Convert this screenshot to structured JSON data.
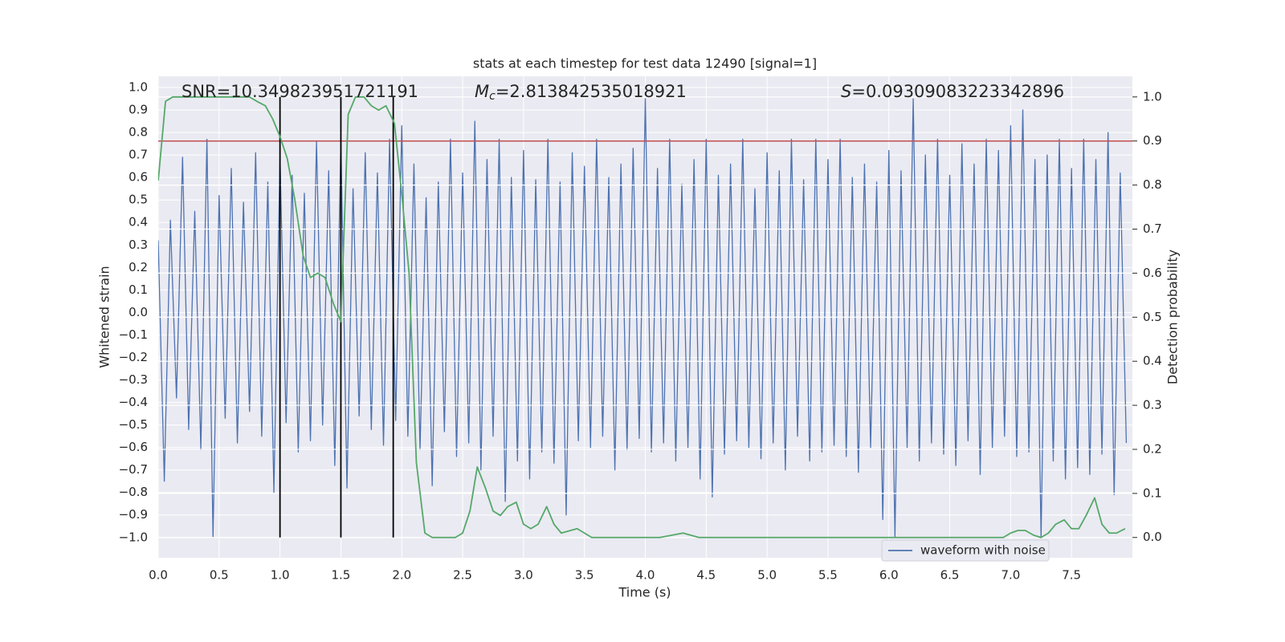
{
  "chart_data": {
    "type": "line",
    "title": "stats at each timestep for test data 12490 [signal=1]",
    "xlabel": "Time (s)",
    "ylabel": "Whitened strain",
    "y2label": "Detection probability",
    "annotations": [
      {
        "text": "SNR=10.349823951721191"
      },
      {
        "symbol": "M",
        "subscript": "c",
        "text": "=2.813842535018921"
      },
      {
        "symbol": "S",
        "text": "=0.09309083223342896"
      }
    ],
    "xlim": [
      0,
      8
    ],
    "ylim": [
      -1.09,
      1.05
    ],
    "y2lim": [
      -0.046,
      1.047
    ],
    "xticks": [
      {
        "value": 0,
        "label": "0.0"
      },
      0.5,
      {
        "value": 1,
        "label": "1.0"
      },
      1.5,
      {
        "value": 2,
        "label": "2.0"
      },
      2.5,
      {
        "value": 3,
        "label": "3.0"
      },
      3.5,
      {
        "value": 4,
        "label": "4.0"
      },
      4.5,
      {
        "value": 5,
        "label": "5.0"
      },
      5.5,
      {
        "value": 6,
        "label": "6.0"
      },
      6.5,
      {
        "value": 7,
        "label": "7.0"
      },
      7.5
    ],
    "yticks": [
      {
        "value": -1,
        "label": "−1.0"
      },
      {
        "value": -0.9,
        "label": "−0.9"
      },
      {
        "value": -0.8,
        "label": "−0.8"
      },
      {
        "value": -0.7,
        "label": "−0.7"
      },
      {
        "value": -0.6,
        "label": "−0.6"
      },
      {
        "value": -0.5,
        "label": "−0.5"
      },
      {
        "value": -0.4,
        "label": "−0.4"
      },
      {
        "value": -0.3,
        "label": "−0.3"
      },
      {
        "value": -0.2,
        "label": "−0.2"
      },
      {
        "value": -0.1,
        "label": "−0.1"
      },
      {
        "value": 0,
        "label": "0.0"
      },
      0.1,
      0.2,
      0.3,
      0.4,
      0.5,
      0.6,
      0.7,
      0.8,
      0.9,
      {
        "value": 1,
        "label": "1.0"
      }
    ],
    "y2ticks": [
      {
        "value": 0,
        "label": "0.0"
      },
      0.1,
      0.2,
      0.3,
      0.4,
      0.5,
      0.6,
      0.7,
      0.8,
      0.9,
      {
        "value": 1,
        "label": "1.0"
      }
    ],
    "grid": true,
    "legend": "lower right",
    "series": [
      {
        "name": "waveform with noise",
        "color": "#4c72b0",
        "x": [
          0,
          0.05,
          0.1,
          0.15,
          0.2,
          0.25,
          0.3,
          0.35,
          0.4,
          0.45,
          0.5,
          0.55,
          0.6,
          0.65,
          0.7,
          0.75,
          0.8,
          0.85,
          0.9,
          0.95,
          1,
          1.05,
          1.1,
          1.15,
          1.2,
          1.25,
          1.3,
          1.35,
          1.4,
          1.45,
          1.5,
          1.55,
          1.6,
          1.65,
          1.7,
          1.75,
          1.8,
          1.85,
          1.9,
          1.95,
          2,
          2.05,
          2.1,
          2.15,
          2.2,
          2.25,
          2.3,
          2.35,
          2.4,
          2.45,
          2.5,
          2.55,
          2.6,
          2.65,
          2.7,
          2.75,
          2.8,
          2.85,
          2.9,
          2.95,
          3,
          3.05,
          3.1,
          3.15,
          3.2,
          3.25,
          3.3,
          3.35,
          3.4,
          3.45,
          3.5,
          3.55,
          3.6,
          3.65,
          3.7,
          3.75,
          3.8,
          3.85,
          3.9,
          3.95,
          4,
          4.05,
          4.1,
          4.15,
          4.2,
          4.25,
          4.3,
          4.35,
          4.4,
          4.45,
          4.5,
          4.55,
          4.6,
          4.65,
          4.7,
          4.75,
          4.8,
          4.85,
          4.9,
          4.95,
          5,
          5.05,
          5.1,
          5.15,
          5.2,
          5.25,
          5.3,
          5.35,
          5.4,
          5.45,
          5.5,
          5.55,
          5.6,
          5.65,
          5.7,
          5.75,
          5.8,
          5.85,
          5.9,
          5.95,
          6,
          6.05,
          6.1,
          6.15,
          6.2,
          6.25,
          6.3,
          6.35,
          6.4,
          6.45,
          6.5,
          6.55,
          6.6,
          6.65,
          6.7,
          6.75,
          6.8,
          6.85,
          6.9,
          6.95,
          7,
          7.05,
          7.1,
          7.15,
          7.2,
          7.25,
          7.3,
          7.35,
          7.4,
          7.45,
          7.5,
          7.55,
          7.6,
          7.65,
          7.7,
          7.75,
          7.8,
          7.85,
          7.9,
          7.95
        ],
        "values": [
          0.32,
          -0.75,
          0.41,
          -0.38,
          0.69,
          -0.52,
          0.45,
          -0.61,
          0.77,
          -1.0,
          0.52,
          -0.47,
          0.64,
          -0.58,
          0.49,
          -0.44,
          0.71,
          -0.55,
          0.58,
          -0.8,
          0.69,
          -0.49,
          0.61,
          -0.62,
          0.53,
          -0.57,
          0.76,
          -0.5,
          0.63,
          -0.68,
          0.77,
          -0.78,
          0.55,
          -0.46,
          0.71,
          -0.52,
          0.62,
          -0.59,
          0.77,
          -0.48,
          0.83,
          -0.55,
          0.66,
          -0.61,
          0.51,
          -0.77,
          0.58,
          -0.53,
          0.77,
          -0.64,
          0.62,
          -0.58,
          0.85,
          -0.7,
          0.68,
          -0.55,
          0.77,
          -0.84,
          0.6,
          -0.66,
          0.72,
          -0.74,
          0.59,
          -0.62,
          0.77,
          -0.67,
          0.58,
          -0.9,
          0.71,
          -0.57,
          0.65,
          -0.6,
          0.77,
          -0.55,
          0.6,
          -0.7,
          0.66,
          -0.61,
          0.73,
          -0.56,
          0.95,
          -0.62,
          0.64,
          -0.58,
          0.77,
          -0.66,
          0.57,
          -0.6,
          0.68,
          -0.74,
          0.77,
          -0.82,
          0.61,
          -0.63,
          0.66,
          -0.57,
          0.77,
          -0.6,
          0.55,
          -0.65,
          0.71,
          -0.58,
          0.63,
          -0.7,
          0.77,
          -0.55,
          0.59,
          -0.66,
          0.77,
          -0.62,
          0.68,
          -0.59,
          0.77,
          -0.64,
          0.6,
          -0.71,
          0.66,
          -0.6,
          0.58,
          -0.92,
          0.72,
          -1.0,
          0.63,
          -0.6,
          0.95,
          -0.66,
          0.7,
          -0.58,
          0.77,
          -0.63,
          0.61,
          -0.68,
          0.75,
          -0.57,
          0.66,
          -0.72,
          0.77,
          -0.6,
          0.72,
          -0.55,
          0.83,
          -0.64,
          0.9,
          -0.62,
          0.68,
          -1.0,
          0.7,
          -0.66,
          0.77,
          -0.74,
          0.64,
          -0.69,
          0.77,
          -0.72,
          0.68,
          -0.63,
          0.8,
          -0.81,
          0.62,
          -0.58
        ]
      },
      {
        "color": "#55a868",
        "axis": "y2",
        "x": [
          0,
          0.06,
          0.12,
          0.25,
          0.5,
          0.75,
          0.81,
          0.88,
          0.94,
          1.0,
          1.06,
          1.12,
          1.19,
          1.25,
          1.31,
          1.37,
          1.44,
          1.5,
          1.56,
          1.62,
          1.69,
          1.75,
          1.81,
          1.87,
          1.94,
          2.0,
          2.06,
          2.12,
          2.19,
          2.25,
          2.37,
          2.44,
          2.5,
          2.56,
          2.62,
          2.69,
          2.75,
          2.81,
          2.87,
          2.94,
          3.0,
          3.06,
          3.12,
          3.19,
          3.25,
          3.31,
          3.44,
          3.5,
          3.56,
          3.75,
          4.0,
          4.12,
          4.31,
          4.44,
          4.75,
          5.0,
          5.5,
          5.94,
          6.0,
          6.5,
          6.94,
          7.0,
          7.06,
          7.12,
          7.19,
          7.25,
          7.31,
          7.37,
          7.44,
          7.5,
          7.56,
          7.62,
          7.69,
          7.75,
          7.81,
          7.87,
          7.94
        ],
        "values": [
          0.81,
          0.99,
          1.0,
          1.0,
          1.0,
          1.0,
          0.99,
          0.98,
          0.95,
          0.91,
          0.86,
          0.77,
          0.64,
          0.59,
          0.6,
          0.59,
          0.53,
          0.49,
          0.96,
          1.0,
          1.0,
          0.98,
          0.97,
          0.98,
          0.94,
          0.78,
          0.6,
          0.17,
          0.01,
          0.0,
          0.0,
          0.0,
          0.01,
          0.06,
          0.16,
          0.11,
          0.06,
          0.05,
          0.07,
          0.08,
          0.03,
          0.02,
          0.03,
          0.07,
          0.03,
          0.01,
          0.02,
          0.01,
          0.0,
          0.0,
          0.0,
          0.0,
          0.01,
          0.0,
          0.0,
          0.0,
          0.0,
          0.0,
          0.0,
          0.0,
          0.0,
          0.01,
          0.016,
          0.016,
          0.005,
          0.0,
          0.01,
          0.03,
          0.04,
          0.02,
          0.02,
          0.05,
          0.09,
          0.03,
          0.01,
          0.01,
          0.02
        ]
      }
    ],
    "threshold": {
      "value": 0.9,
      "axis": "y2",
      "color": "#c44e52"
    },
    "vlines": {
      "x": [
        1.0,
        1.5,
        1.93
      ],
      "ymin": 0,
      "ymax": 1,
      "axis": "y2",
      "color": "#000000"
    }
  }
}
